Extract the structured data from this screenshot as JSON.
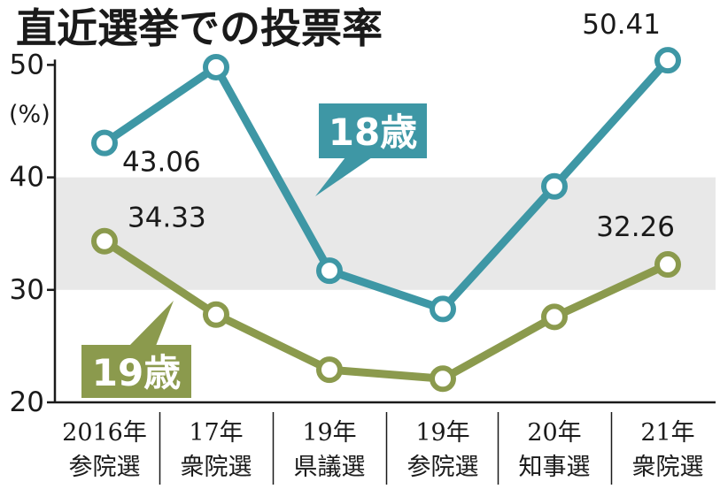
{
  "title": "直近選挙での投票率",
  "chart_data": {
    "type": "line",
    "title": "直近選挙での投票率",
    "ylabel": "(%)",
    "ylim": [
      20,
      50
    ],
    "yticks": [
      50,
      40,
      30,
      20
    ],
    "grid": false,
    "highlight_band": [
      30,
      40
    ],
    "categories": [
      [
        "2016年",
        "参院選"
      ],
      [
        "17年",
        "衆院選"
      ],
      [
        "19年",
        "県議選"
      ],
      [
        "19年",
        "参院選"
      ],
      [
        "20年",
        "知事選"
      ],
      [
        "21年",
        "衆院選"
      ]
    ],
    "series": [
      {
        "name": "18歳",
        "color": "#3e97a5",
        "values": [
          43.06,
          49.8,
          31.7,
          28.3,
          39.2,
          50.41
        ],
        "labels": [
          "43.06",
          null,
          null,
          null,
          null,
          "50.41"
        ]
      },
      {
        "name": "19歳",
        "color": "#8b9a4d",
        "values": [
          34.33,
          27.8,
          22.9,
          22.1,
          27.6,
          32.26
        ],
        "labels": [
          "34.33",
          null,
          null,
          null,
          null,
          "32.26"
        ]
      }
    ]
  }
}
